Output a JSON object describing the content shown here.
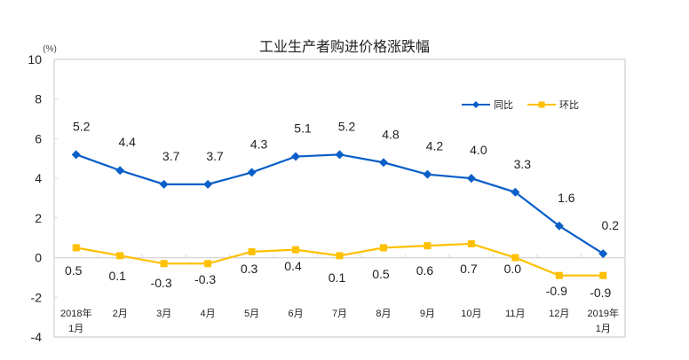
{
  "chart_data": {
    "type": "line",
    "title": "工业生产者购进价格涨跌幅",
    "ylabel": "(%)",
    "ylim": [
      -4,
      10
    ],
    "yticks": [
      -4,
      -2,
      0,
      2,
      4,
      6,
      8,
      10
    ],
    "categories": [
      [
        "2018年",
        "1月"
      ],
      [
        "2月"
      ],
      [
        "3月"
      ],
      [
        "4月"
      ],
      [
        "5月"
      ],
      [
        "6月"
      ],
      [
        "7月"
      ],
      [
        "8月"
      ],
      [
        "9月"
      ],
      [
        "10月"
      ],
      [
        "11月"
      ],
      [
        "12月"
      ],
      [
        "2019年",
        "1月"
      ]
    ],
    "series": [
      {
        "name": "同比",
        "color": "#0a5fc8",
        "marker": "diamond",
        "values": [
          5.2,
          4.4,
          3.7,
          3.7,
          4.3,
          5.1,
          5.2,
          4.8,
          4.2,
          4.0,
          3.3,
          1.6,
          0.2
        ],
        "labels": [
          "5.2",
          "4.4",
          "3.7",
          "3.7",
          "4.3",
          "5.1",
          "5.2",
          "4.8",
          "4.2",
          "4.0",
          "3.3",
          "1.6",
          "0.2"
        ]
      },
      {
        "name": "环比",
        "color": "#ffc000",
        "marker": "square",
        "values": [
          0.5,
          0.1,
          -0.3,
          -0.3,
          0.3,
          0.4,
          0.1,
          0.5,
          0.6,
          0.7,
          0.0,
          -0.9,
          -0.9
        ],
        "labels": [
          "0.5",
          "0.1",
          "-0.3",
          "-0.3",
          "0.3",
          "0.4",
          "0.1",
          "0.5",
          "0.6",
          "0.7",
          "0.0",
          "-0.9",
          "-0.9"
        ]
      }
    ],
    "legend": "top-right",
    "grid": false
  }
}
